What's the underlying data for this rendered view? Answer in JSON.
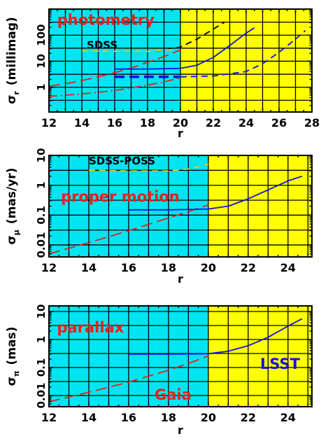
{
  "figure": {
    "colors": {
      "cyan_region": "#00e5f2",
      "yellow_region": "#ffff00",
      "red": "#e8201a",
      "blue": "#1010e0",
      "black": "#000000",
      "sdss_yellow": "#d8e020",
      "grid": "#000000"
    }
  },
  "chart_data": [
    {
      "type": "line",
      "panel": "photometry",
      "ylabel": "σ_r  (millimag)",
      "ylabel_main": "σ",
      "ylabel_sub": "r",
      "ylabel_unit": "(millimag)",
      "xlabel": "r",
      "xlim": [
        12,
        28
      ],
      "ylim_log10": [
        -0.95,
        3.0
      ],
      "yscale": "log",
      "grid": true,
      "x_ticks": [
        12,
        14,
        16,
        18,
        20,
        22,
        24,
        26,
        28
      ],
      "x_tick_labels": [
        "12",
        "14",
        "16",
        "18",
        "20",
        "22",
        "24",
        "26",
        "28"
      ],
      "y_ticks": [
        1,
        10,
        100
      ],
      "y_tick_labels": [
        "1",
        "10",
        "100"
      ],
      "regions": [
        {
          "from": 12,
          "to": 20,
          "color": "cyan"
        },
        {
          "from": 20,
          "to": 28,
          "color": "yellow"
        }
      ],
      "annotations": [
        {
          "text": "photometry",
          "x": 12.5,
          "y": 250,
          "color": "red"
        },
        {
          "text": "SDSS",
          "x": 14.3,
          "y": 30,
          "color": "black"
        }
      ],
      "series": [
        {
          "color": "red",
          "style": "longdash",
          "x": [
            12,
            13,
            14,
            15,
            16,
            17,
            18,
            19,
            20
          ],
          "y": [
            1.1,
            1.35,
            1.8,
            2.5,
            3.6,
            5.5,
            9,
            15,
            27
          ]
        },
        {
          "color": "red",
          "style": "dashdot",
          "x": [
            12,
            14,
            16,
            18,
            19,
            20
          ],
          "y": [
            0.45,
            0.55,
            0.75,
            1.2,
            1.6,
            2.3
          ]
        },
        {
          "color": "black",
          "style": "dash",
          "x": [
            14,
            16,
            18,
            19,
            20,
            21,
            22,
            22.7
          ],
          "y": [
            25,
            24,
            24,
            26,
            35,
            70,
            170,
            320
          ]
        },
        {
          "color": "sdss_yellow",
          "style": "dash",
          "x": [
            14,
            16,
            18,
            19.5
          ],
          "y": [
            25,
            24,
            24,
            28
          ]
        },
        {
          "color": "blue",
          "style": "solid",
          "x": [
            16,
            18,
            20,
            21,
            22,
            23,
            24,
            24.5
          ],
          "y": [
            5,
            5,
            5.3,
            7,
            14,
            40,
            120,
            190
          ]
        },
        {
          "color": "blue",
          "style": "dash-thick",
          "x": [
            16,
            20
          ],
          "y": [
            2.5,
            2.5
          ]
        },
        {
          "color": "blue",
          "style": "dash",
          "x": [
            20,
            22,
            24,
            25,
            26,
            27,
            27.6
          ],
          "y": [
            2.5,
            2.7,
            4,
            8,
            22,
            70,
            150
          ]
        }
      ]
    },
    {
      "type": "line",
      "panel": "proper-motion",
      "ylabel": "σ_μ  (mas/yr)",
      "ylabel_main": "σ",
      "ylabel_sub": "μ",
      "ylabel_unit": "(mas/yr)",
      "xlabel": "r",
      "xlim": [
        12,
        25.2
      ],
      "ylim_log10": [
        -2.4,
        1.0
      ],
      "yscale": "log",
      "grid": true,
      "x_ticks": [
        12,
        14,
        16,
        18,
        20,
        22,
        24
      ],
      "x_tick_labels": [
        "12",
        "14",
        "16",
        "18",
        "20",
        "22",
        "24"
      ],
      "y_ticks": [
        0.01,
        0.1,
        1,
        10
      ],
      "y_tick_labels": [
        "0.01",
        "0.1",
        "1",
        "10"
      ],
      "regions": [
        {
          "from": 12,
          "to": 20,
          "color": "cyan"
        },
        {
          "from": 20,
          "to": 25.2,
          "color": "yellow"
        }
      ],
      "annotations": [
        {
          "text": "SDSS-POSS",
          "x": 14.0,
          "y": 5.0,
          "color": "black"
        },
        {
          "text": "proper motion",
          "x": 12.6,
          "y": 0.28,
          "color": "red"
        }
      ],
      "series": [
        {
          "color": "red",
          "style": "longdash",
          "x": [
            12,
            14,
            16,
            18,
            19,
            20
          ],
          "y": [
            0.005,
            0.012,
            0.03,
            0.08,
            0.13,
            0.22
          ]
        },
        {
          "color": "black",
          "style": "dash",
          "x": [
            14,
            16,
            18,
            19,
            20
          ],
          "y": [
            3.2,
            3.0,
            3.0,
            3.5,
            5.0
          ]
        },
        {
          "color": "sdss_yellow",
          "style": "dash",
          "x": [
            14,
            16,
            18,
            19,
            20
          ],
          "y": [
            3.2,
            3.0,
            3.0,
            3.5,
            5.0
          ]
        },
        {
          "color": "blue",
          "style": "solid",
          "x": [
            16,
            18,
            20,
            21,
            22,
            23,
            24,
            24.7
          ],
          "y": [
            0.15,
            0.15,
            0.16,
            0.2,
            0.35,
            0.7,
            1.4,
            2.0
          ]
        }
      ]
    },
    {
      "type": "line",
      "panel": "parallax",
      "ylabel": "σ_π  (mas)",
      "ylabel_main": "σ",
      "ylabel_sub": "π",
      "ylabel_unit": "(mas)",
      "xlabel": "r",
      "xlim": [
        12,
        25.2
      ],
      "ylim_log10": [
        -2.4,
        1.2
      ],
      "yscale": "log",
      "grid": true,
      "x_ticks": [
        12,
        14,
        16,
        18,
        20,
        22,
        24
      ],
      "x_tick_labels": [
        "12",
        "14",
        "16",
        "18",
        "20",
        "22",
        "24"
      ],
      "y_ticks": [
        0.01,
        0.1,
        1,
        10
      ],
      "y_tick_labels": [
        "0.01",
        "0.1",
        "1",
        "10"
      ],
      "regions": [
        {
          "from": 12,
          "to": 20,
          "color": "cyan"
        },
        {
          "from": 20,
          "to": 25.2,
          "color": "yellow"
        }
      ],
      "annotations": [
        {
          "text": "parallax",
          "x": 12.4,
          "y": 1.8,
          "color": "red"
        },
        {
          "text": "LSST",
          "x": 22.6,
          "y": 0.09,
          "color": "blue"
        },
        {
          "text": "Gaia",
          "x": 17.3,
          "y": 0.007,
          "color": "red"
        }
      ],
      "series": [
        {
          "color": "red",
          "style": "longdash",
          "x": [
            12,
            14,
            16,
            18,
            19,
            20
          ],
          "y": [
            0.006,
            0.013,
            0.03,
            0.08,
            0.14,
            0.26
          ]
        },
        {
          "color": "blue",
          "style": "solid",
          "x": [
            16,
            18,
            20,
            21,
            22,
            23,
            24,
            24.7
          ],
          "y": [
            0.3,
            0.3,
            0.31,
            0.38,
            0.6,
            1.2,
            3.0,
            5.5
          ]
        }
      ]
    }
  ]
}
